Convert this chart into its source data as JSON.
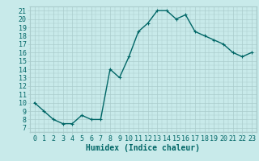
{
  "x": [
    0,
    1,
    2,
    3,
    4,
    5,
    6,
    7,
    8,
    9,
    10,
    11,
    12,
    13,
    14,
    15,
    16,
    17,
    18,
    19,
    20,
    21,
    22,
    23
  ],
  "y": [
    10,
    9,
    8,
    7.5,
    7.5,
    8.5,
    8,
    8,
    14,
    13,
    15.5,
    18.5,
    19.5,
    21,
    21,
    20,
    20.5,
    18.5,
    18,
    17.5,
    17,
    16,
    15.5,
    16
  ],
  "line_color": "#006666",
  "marker": "+",
  "bg_color": "#c8eaea",
  "grid_color": "#aacccc",
  "xlabel": "Humidex (Indice chaleur)",
  "ylabel_ticks": [
    7,
    8,
    9,
    10,
    11,
    12,
    13,
    14,
    15,
    16,
    17,
    18,
    19,
    20,
    21
  ],
  "xtick_labels": [
    "0",
    "1",
    "2",
    "3",
    "4",
    "5",
    "6",
    "7",
    "8",
    "9",
    "10",
    "11",
    "12",
    "13",
    "14",
    "15",
    "16",
    "17",
    "18",
    "19",
    "20",
    "21",
    "22",
    "23"
  ],
  "xlim": [
    -0.5,
    23.5
  ],
  "ylim": [
    6.5,
    21.5
  ],
  "font_color": "#006666",
  "tick_fontsize": 6,
  "xlabel_fontsize": 7,
  "line_width": 1.0,
  "marker_size": 3
}
